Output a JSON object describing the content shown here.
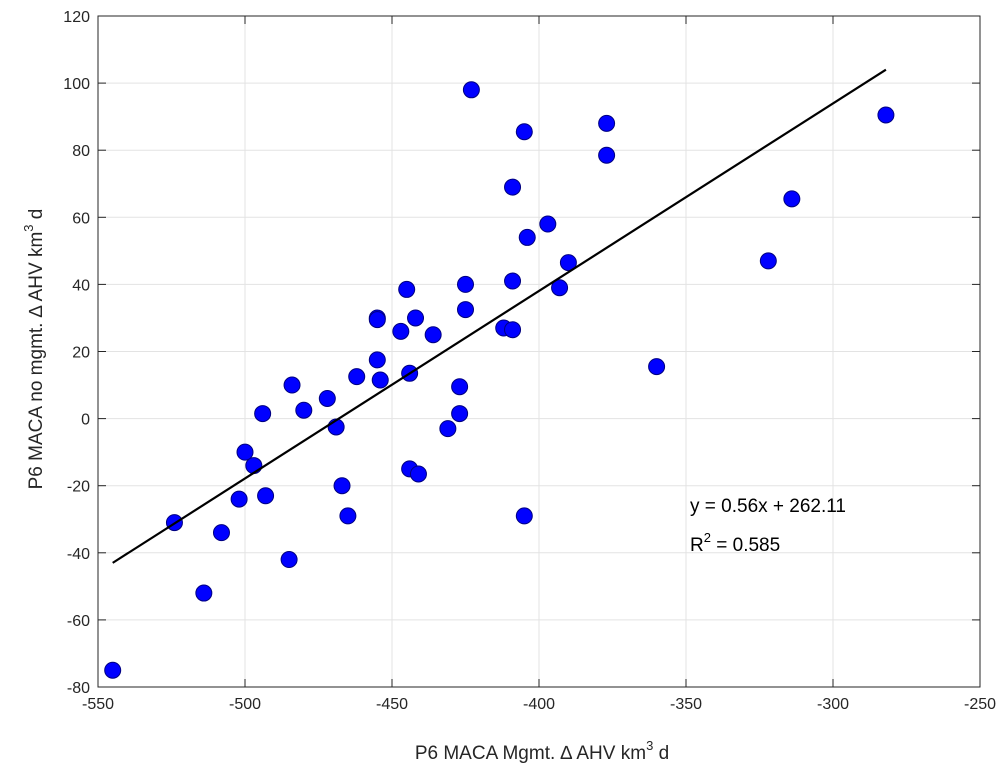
{
  "chart_data": {
    "type": "scatter",
    "title": "",
    "xlabel": {
      "prefix": "P6 MACA Mgmt. ",
      "delta": "∆",
      "middle": " AHV km",
      "sup": "3",
      "suffix": " d"
    },
    "ylabel": {
      "prefix": "P6 MACA no mgmt. ",
      "delta": "∆",
      "middle": " AHV km",
      "sup": "3",
      "suffix": " d"
    },
    "xlim": [
      -550,
      -250
    ],
    "ylim": [
      -80,
      120
    ],
    "xticks": [
      -550,
      -500,
      -450,
      -400,
      -350,
      -300,
      -250
    ],
    "yticks": [
      -80,
      -60,
      -40,
      -20,
      0,
      20,
      40,
      60,
      80,
      100,
      120
    ],
    "xtick_labels": [
      "-550",
      "-500",
      "-450",
      "-400",
      "-350",
      "-300",
      "-250"
    ],
    "ytick_labels": [
      "-80",
      "-60",
      "-40",
      "-20",
      "0",
      "20",
      "40",
      "60",
      "80",
      "100",
      "120"
    ],
    "grid": true,
    "marker_color": "#0000ff",
    "marker_edge": "#000080",
    "line_color": "#000000",
    "points": [
      {
        "x": -545,
        "y": -75
      },
      {
        "x": -524,
        "y": -31
      },
      {
        "x": -514,
        "y": -52
      },
      {
        "x": -508,
        "y": -34
      },
      {
        "x": -502,
        "y": -24
      },
      {
        "x": -500,
        "y": -10
      },
      {
        "x": -497,
        "y": -14
      },
      {
        "x": -494,
        "y": 1.5
      },
      {
        "x": -493,
        "y": -23
      },
      {
        "x": -484,
        "y": 10
      },
      {
        "x": -485,
        "y": -42
      },
      {
        "x": -480,
        "y": 2.5
      },
      {
        "x": -472,
        "y": 6
      },
      {
        "x": -469,
        "y": -2.5
      },
      {
        "x": -467,
        "y": -20
      },
      {
        "x": -465,
        "y": -29
      },
      {
        "x": -462,
        "y": 12.5
      },
      {
        "x": -455,
        "y": 30
      },
      {
        "x": -455,
        "y": 29.5
      },
      {
        "x": -455,
        "y": 17.5
      },
      {
        "x": -454,
        "y": 11.5
      },
      {
        "x": -447,
        "y": 26
      },
      {
        "x": -445,
        "y": 38.5
      },
      {
        "x": -444,
        "y": 13.5
      },
      {
        "x": -444,
        "y": -15
      },
      {
        "x": -442,
        "y": 30
      },
      {
        "x": -441,
        "y": -16.5
      },
      {
        "x": -436,
        "y": 25
      },
      {
        "x": -431,
        "y": -3
      },
      {
        "x": -427,
        "y": 9.5
      },
      {
        "x": -427,
        "y": 1.5
      },
      {
        "x": -425,
        "y": 40
      },
      {
        "x": -425,
        "y": 32.5
      },
      {
        "x": -423,
        "y": 98
      },
      {
        "x": -412,
        "y": 27
      },
      {
        "x": -409,
        "y": 69
      },
      {
        "x": -409,
        "y": 41
      },
      {
        "x": -409,
        "y": 26.5
      },
      {
        "x": -405,
        "y": 85.5
      },
      {
        "x": -404,
        "y": 54
      },
      {
        "x": -405,
        "y": -29
      },
      {
        "x": -397,
        "y": 58
      },
      {
        "x": -393,
        "y": 39
      },
      {
        "x": -390,
        "y": 46.5
      },
      {
        "x": -377,
        "y": 88
      },
      {
        "x": -377,
        "y": 78.5
      },
      {
        "x": -360,
        "y": 15.5
      },
      {
        "x": -322,
        "y": 47
      },
      {
        "x": -314,
        "y": 65.5
      },
      {
        "x": -282,
        "y": 90.5
      }
    ],
    "fit": {
      "x_start": -545,
      "y_start": -43,
      "x_end": -282,
      "y_end": 104
    },
    "annotations": {
      "equation": "y = 0.56x + 262.11",
      "r2_prefix": "R",
      "r2_sup": "2",
      "r2_suffix": " = 0.585"
    }
  }
}
